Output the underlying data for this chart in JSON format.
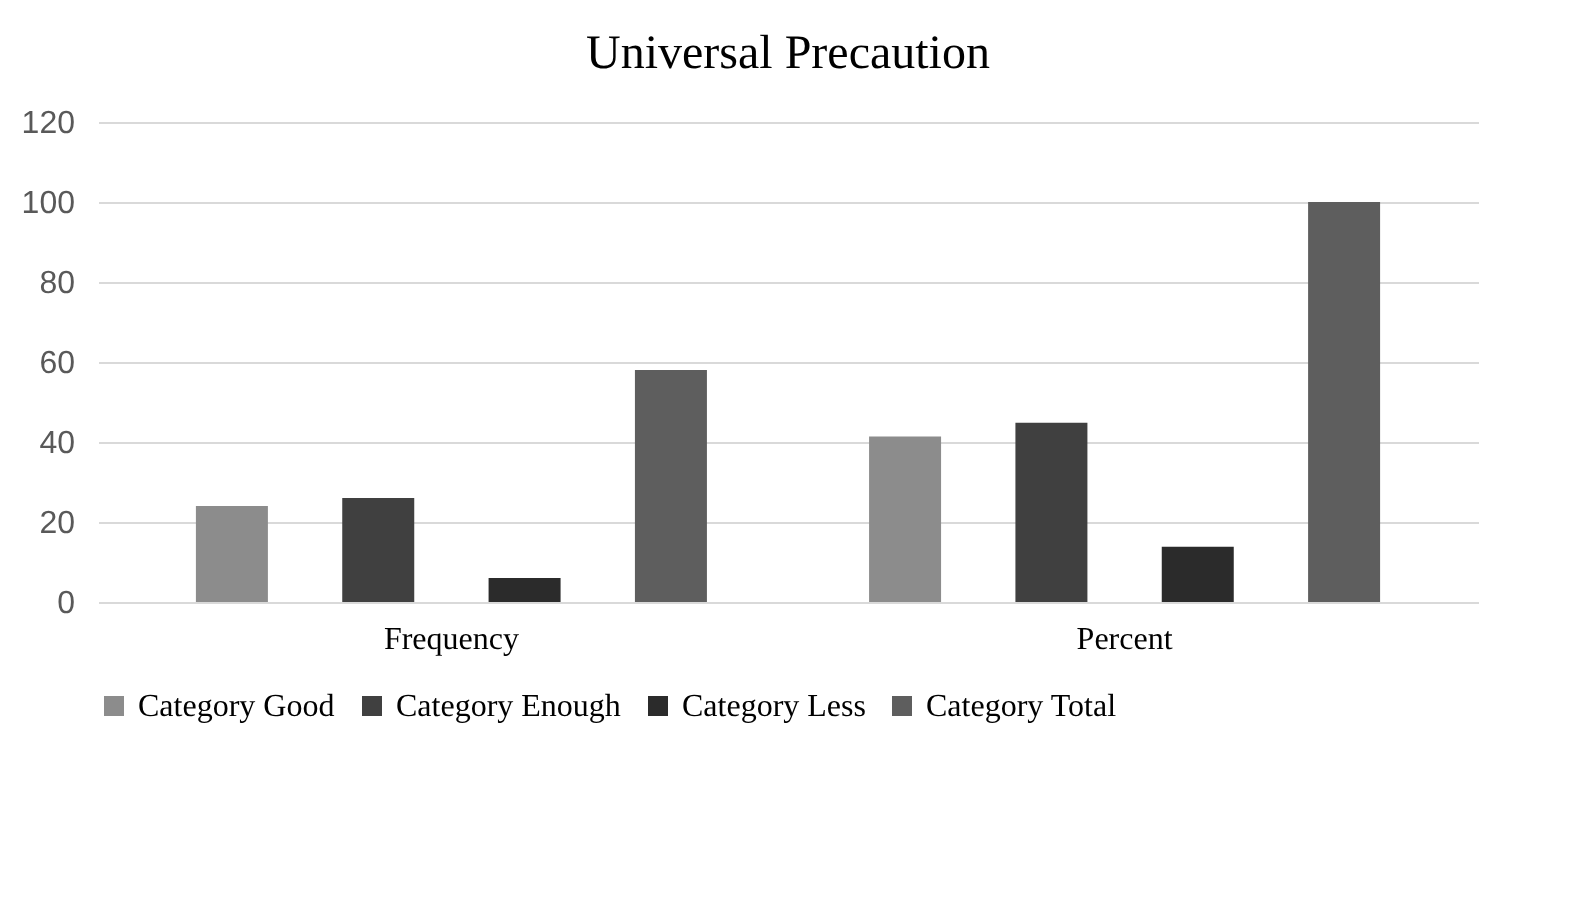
{
  "chart_data": {
    "type": "bar",
    "title": "Universal Precaution",
    "categories": [
      "Frequency",
      "Percent"
    ],
    "series": [
      {
        "name": "Category  Good",
        "color": "#8c8c8c",
        "values": [
          24,
          41.4
        ]
      },
      {
        "name": "Category  Enough",
        "color": "#404040",
        "values": [
          26,
          44.8
        ]
      },
      {
        "name": "Category  Less",
        "color": "#2b2b2b",
        "values": [
          6,
          13.8
        ]
      },
      {
        "name": "Category  Total",
        "color": "#5e5e5e",
        "values": [
          58,
          100
        ]
      }
    ],
    "ylim": [
      0,
      120
    ],
    "yticks": [
      0,
      20,
      40,
      60,
      80,
      100,
      120
    ],
    "grid": "y",
    "legend": "bottom"
  }
}
